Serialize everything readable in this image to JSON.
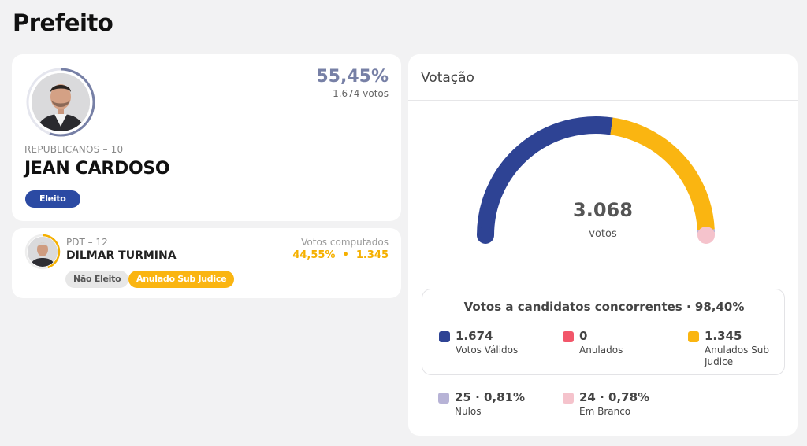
{
  "page": {
    "title": "Prefeito"
  },
  "winner": {
    "percent": "55,45%",
    "votes": "1.674 votos",
    "party": "REPUBLICANOS – 10",
    "name": "JEAN CARDOSO",
    "badge": "Eleito",
    "ring_color": "#7780a6"
  },
  "runner_up": {
    "party": "PDT – 12",
    "name": "DILMAR TURMINA",
    "votes_label": "Votos computados",
    "votes_value": "44,55%  •  1.345",
    "badges": [
      "Não Eleito",
      "Anulado Sub Judice"
    ],
    "ring_color": "#f5b000"
  },
  "votes_panel": {
    "title": "Votação",
    "total": "3.068",
    "total_unit": "votos",
    "gauge": {
      "segments": [
        {
          "name": "Votos Válidos",
          "fraction": 0.5456,
          "color": "#2e4394"
        },
        {
          "name": "Anulados Sub Judice",
          "fraction": 0.4384,
          "color": "#fab511"
        },
        {
          "name": "Nulos",
          "fraction": 0.0081,
          "color": "#b7b3d6"
        },
        {
          "name": "Em Branco",
          "fraction": 0.0078,
          "color": "#f5c3cc"
        }
      ]
    },
    "summary_title": "Votos a candidatos concorrentes · 98,40%",
    "summary": [
      {
        "value": "1.674",
        "label": "Votos Válidos",
        "color": "#2e4394"
      },
      {
        "value": "0",
        "label": "Anulados",
        "color": "#f2566a"
      },
      {
        "value": "1.345",
        "label": "Anulados Sub Judice",
        "color": "#fab511"
      }
    ],
    "others": [
      {
        "value": "25 · 0,81%",
        "label": "Nulos",
        "color": "#b7b3d6"
      },
      {
        "value": "24 · 0,78%",
        "label": "Em Branco",
        "color": "#f5c3cc"
      }
    ]
  }
}
